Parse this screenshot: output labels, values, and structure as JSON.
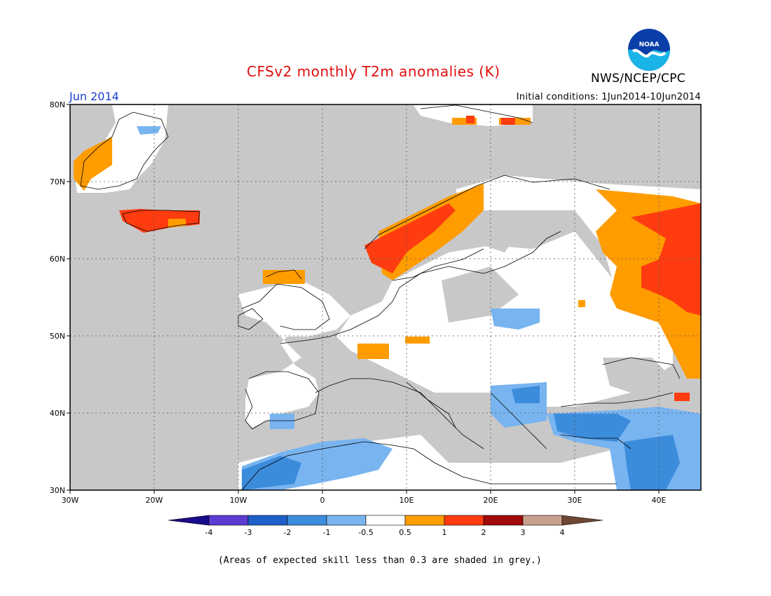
{
  "header": {
    "title": "CFSv2 monthly T2m anomalies (K)",
    "month": "Jun 2014",
    "initial_conditions": "Initial conditions: 1Jun2014-10Jun2014",
    "agency": "NWS/NCEP/CPC",
    "logo_text": "NOAA"
  },
  "map": {
    "lon_range": [
      -30,
      45
    ],
    "lat_range": [
      30,
      80
    ],
    "lon_ticks": [
      "30W",
      "20W",
      "10W",
      "0",
      "10E",
      "20E",
      "30E",
      "40E"
    ],
    "lat_ticks": [
      "30N",
      "40N",
      "50N",
      "60N",
      "70N",
      "80N"
    ],
    "grid": "dotted"
  },
  "colorbar": {
    "labels": [
      "-4",
      "-3",
      "-2",
      "-1",
      "-0.5",
      "0.5",
      "1",
      "2",
      "3",
      "4"
    ],
    "colors": [
      "#1a0a8c",
      "#5a3cd0",
      "#1e5fc8",
      "#3c8cdc",
      "#78b4f0",
      "#ffffff",
      "#ff9c00",
      "#ff3c0f",
      "#a00a0a",
      "#c8a08c",
      "#6e4632"
    ]
  },
  "legend_colors": {
    "low_skill": "#c8c8c8",
    "ocean": "#c8c8c8",
    "neutral": "#ffffff"
  },
  "footnote": "(Areas of expected skill less than 0.3 are shaded in grey.)"
}
